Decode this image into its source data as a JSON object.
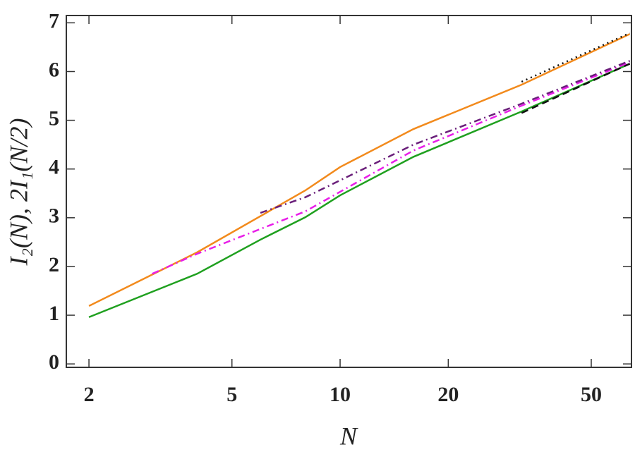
{
  "chart_data": {
    "type": "line",
    "xlabel": "N",
    "ylabel": "I₂(N), 2I₁(N/2)",
    "xscale": "log",
    "xlim": [
      1.73,
      64.7
    ],
    "ylim": [
      -0.07,
      7.15
    ],
    "xticks": [
      2,
      5,
      10,
      20,
      50
    ],
    "yticks": [
      0,
      1,
      2,
      3,
      4,
      5,
      6,
      7
    ],
    "series": [
      {
        "color": "#f28a1c",
        "style": "solid",
        "x": [
          2,
          4,
          8,
          10,
          16,
          32,
          64
        ],
        "values": [
          1.19,
          2.29,
          3.56,
          4.04,
          4.82,
          5.73,
          6.77
        ]
      },
      {
        "color": "#1fa01f",
        "style": "solid",
        "x": [
          2,
          4,
          6,
          8,
          10,
          16,
          32,
          64
        ],
        "values": [
          0.96,
          1.85,
          2.55,
          3.01,
          3.46,
          4.25,
          5.18,
          6.16
        ]
      },
      {
        "color": "#e81ee8",
        "style": "dashdot",
        "x": [
          3,
          4,
          8,
          16,
          32,
          64
        ],
        "values": [
          1.85,
          2.26,
          3.13,
          4.38,
          5.3,
          6.19
        ]
      },
      {
        "color": "#6a1f7a",
        "style": "dashdot",
        "x": [
          6,
          8,
          16,
          32,
          64
        ],
        "values": [
          3.1,
          3.42,
          4.5,
          5.34,
          6.22
        ]
      },
      {
        "color": "#111111",
        "style": "dotted",
        "x": [
          32,
          64
        ],
        "values": [
          5.79,
          6.79
        ]
      },
      {
        "color": "#111111",
        "style": "dashed",
        "x": [
          32,
          64
        ],
        "values": [
          5.15,
          6.16
        ]
      }
    ]
  }
}
